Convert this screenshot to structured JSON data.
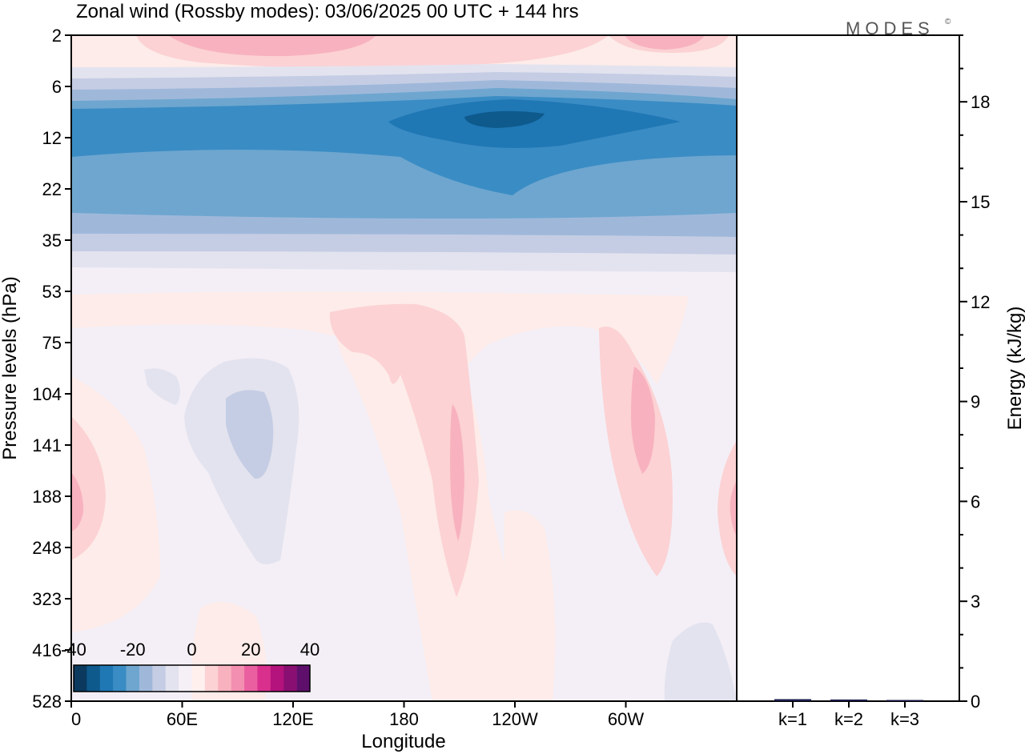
{
  "header": {
    "title": "Zonal wind (Rossby modes):  03/06/2025  00 UTC  + 144 hrs",
    "brand": "MODES",
    "brand_mark": "©"
  },
  "chart_data": [
    {
      "type": "heatmap",
      "title": "Zonal wind (Rossby modes):  03/06/2025  00 UTC  + 144 hrs",
      "xlabel": "Longitude",
      "ylabel": "Pressure levels (hPa)",
      "x_ticks": [
        "0",
        "60E",
        "120E",
        "180",
        "120W",
        "60W"
      ],
      "y_ticks": [
        "2",
        "6",
        "12",
        "22",
        "35",
        "53",
        "75",
        "104",
        "141",
        "188",
        "248",
        "323",
        "416",
        "528"
      ],
      "xlim": [
        0,
        360
      ],
      "colorbar": {
        "tick_labels": [
          "-40",
          "-20",
          "0",
          "20",
          "40"
        ],
        "range": [
          -40,
          40
        ],
        "colors": [
          "#0b3a5e",
          "#0e5a8c",
          "#1f77b4",
          "#3a8cc4",
          "#6ea6cf",
          "#9fb8da",
          "#c5cde4",
          "#e3e3ef",
          "#f5f0f6",
          "#fff0ee",
          "#fcd2d4",
          "#f8b2bf",
          "#f38fb0",
          "#ea5f9f",
          "#d9308e",
          "#b4127c",
          "#8a0f72",
          "#5e0f6c"
        ]
      },
      "features": [
        {
          "desc": "easterly jet core",
          "level_hPa": 10,
          "longitude": "110W",
          "approx_value": -40
        },
        {
          "desc": "easterly band",
          "levels_hPa": [
            6,
            35
          ],
          "approx_value": -25
        },
        {
          "desc": "westerly maximum",
          "level_hPa": 3,
          "longitude": "60E",
          "approx_value": 10
        },
        {
          "desc": "westerly plume",
          "levels_hPa": [
            75,
            323
          ],
          "longitude": "160W",
          "approx_value": 10
        },
        {
          "desc": "westerly plume",
          "levels_hPa": [
            75,
            248
          ],
          "longitude": "60W",
          "approx_value": 10
        },
        {
          "desc": "weak easterly",
          "levels_hPa": [
            104,
            248
          ],
          "longitude": "90E",
          "approx_value": -5
        }
      ]
    },
    {
      "type": "bar",
      "categories": [
        "k=1",
        "k=2",
        "k=3"
      ],
      "values": [
        0.06,
        0.05,
        0.02
      ],
      "ylabel": "Energy (kJ/kg)",
      "ylim": [
        0,
        20
      ],
      "y_ticks": [
        "0",
        "3",
        "6",
        "9",
        "12",
        "15",
        "18"
      ]
    }
  ]
}
